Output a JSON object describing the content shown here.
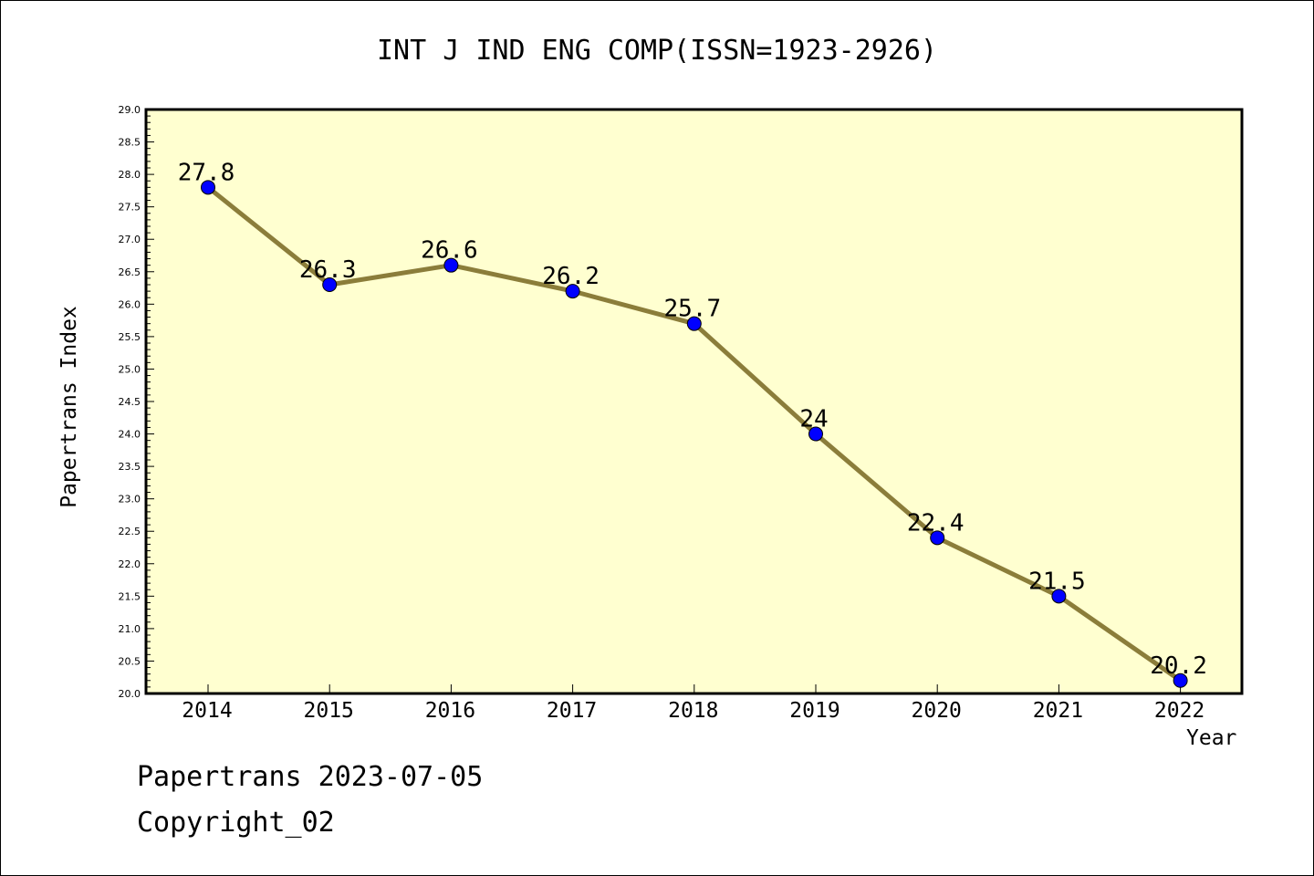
{
  "chart_data": {
    "type": "line",
    "title": "INT J IND ENG COMP(ISSN=1923-2926)",
    "xlabel": "Year",
    "ylabel": "Papertrans Index",
    "categories": [
      "2014",
      "2015",
      "2016",
      "2017",
      "2018",
      "2019",
      "2020",
      "2021",
      "2022"
    ],
    "series": [
      {
        "values": [
          27.8,
          26.3,
          26.6,
          26.2,
          25.7,
          24,
          22.4,
          21.5,
          20.2
        ],
        "data_labels": [
          "27.8",
          "26.3",
          "26.6",
          "26.2",
          "25.7",
          "24",
          "22.4",
          "21.5",
          "20.2"
        ]
      }
    ],
    "ylim": [
      20.0,
      29.0
    ],
    "yticks": [
      "20.0",
      "20.5",
      "21.0",
      "21.5",
      "22.0",
      "22.5",
      "23.0",
      "23.5",
      "24.0",
      "24.5",
      "25.0",
      "25.5",
      "26.0",
      "26.5",
      "27.0",
      "27.5",
      "28.0",
      "28.5",
      "29.0"
    ],
    "grid": false,
    "colors": {
      "plot_background": "#ffffd0",
      "line": "#8b7d3a",
      "marker": "#0000ff"
    }
  },
  "footer": {
    "date_text": "Papertrans 2023-07-05",
    "copyright_text": "Copyright_02"
  }
}
